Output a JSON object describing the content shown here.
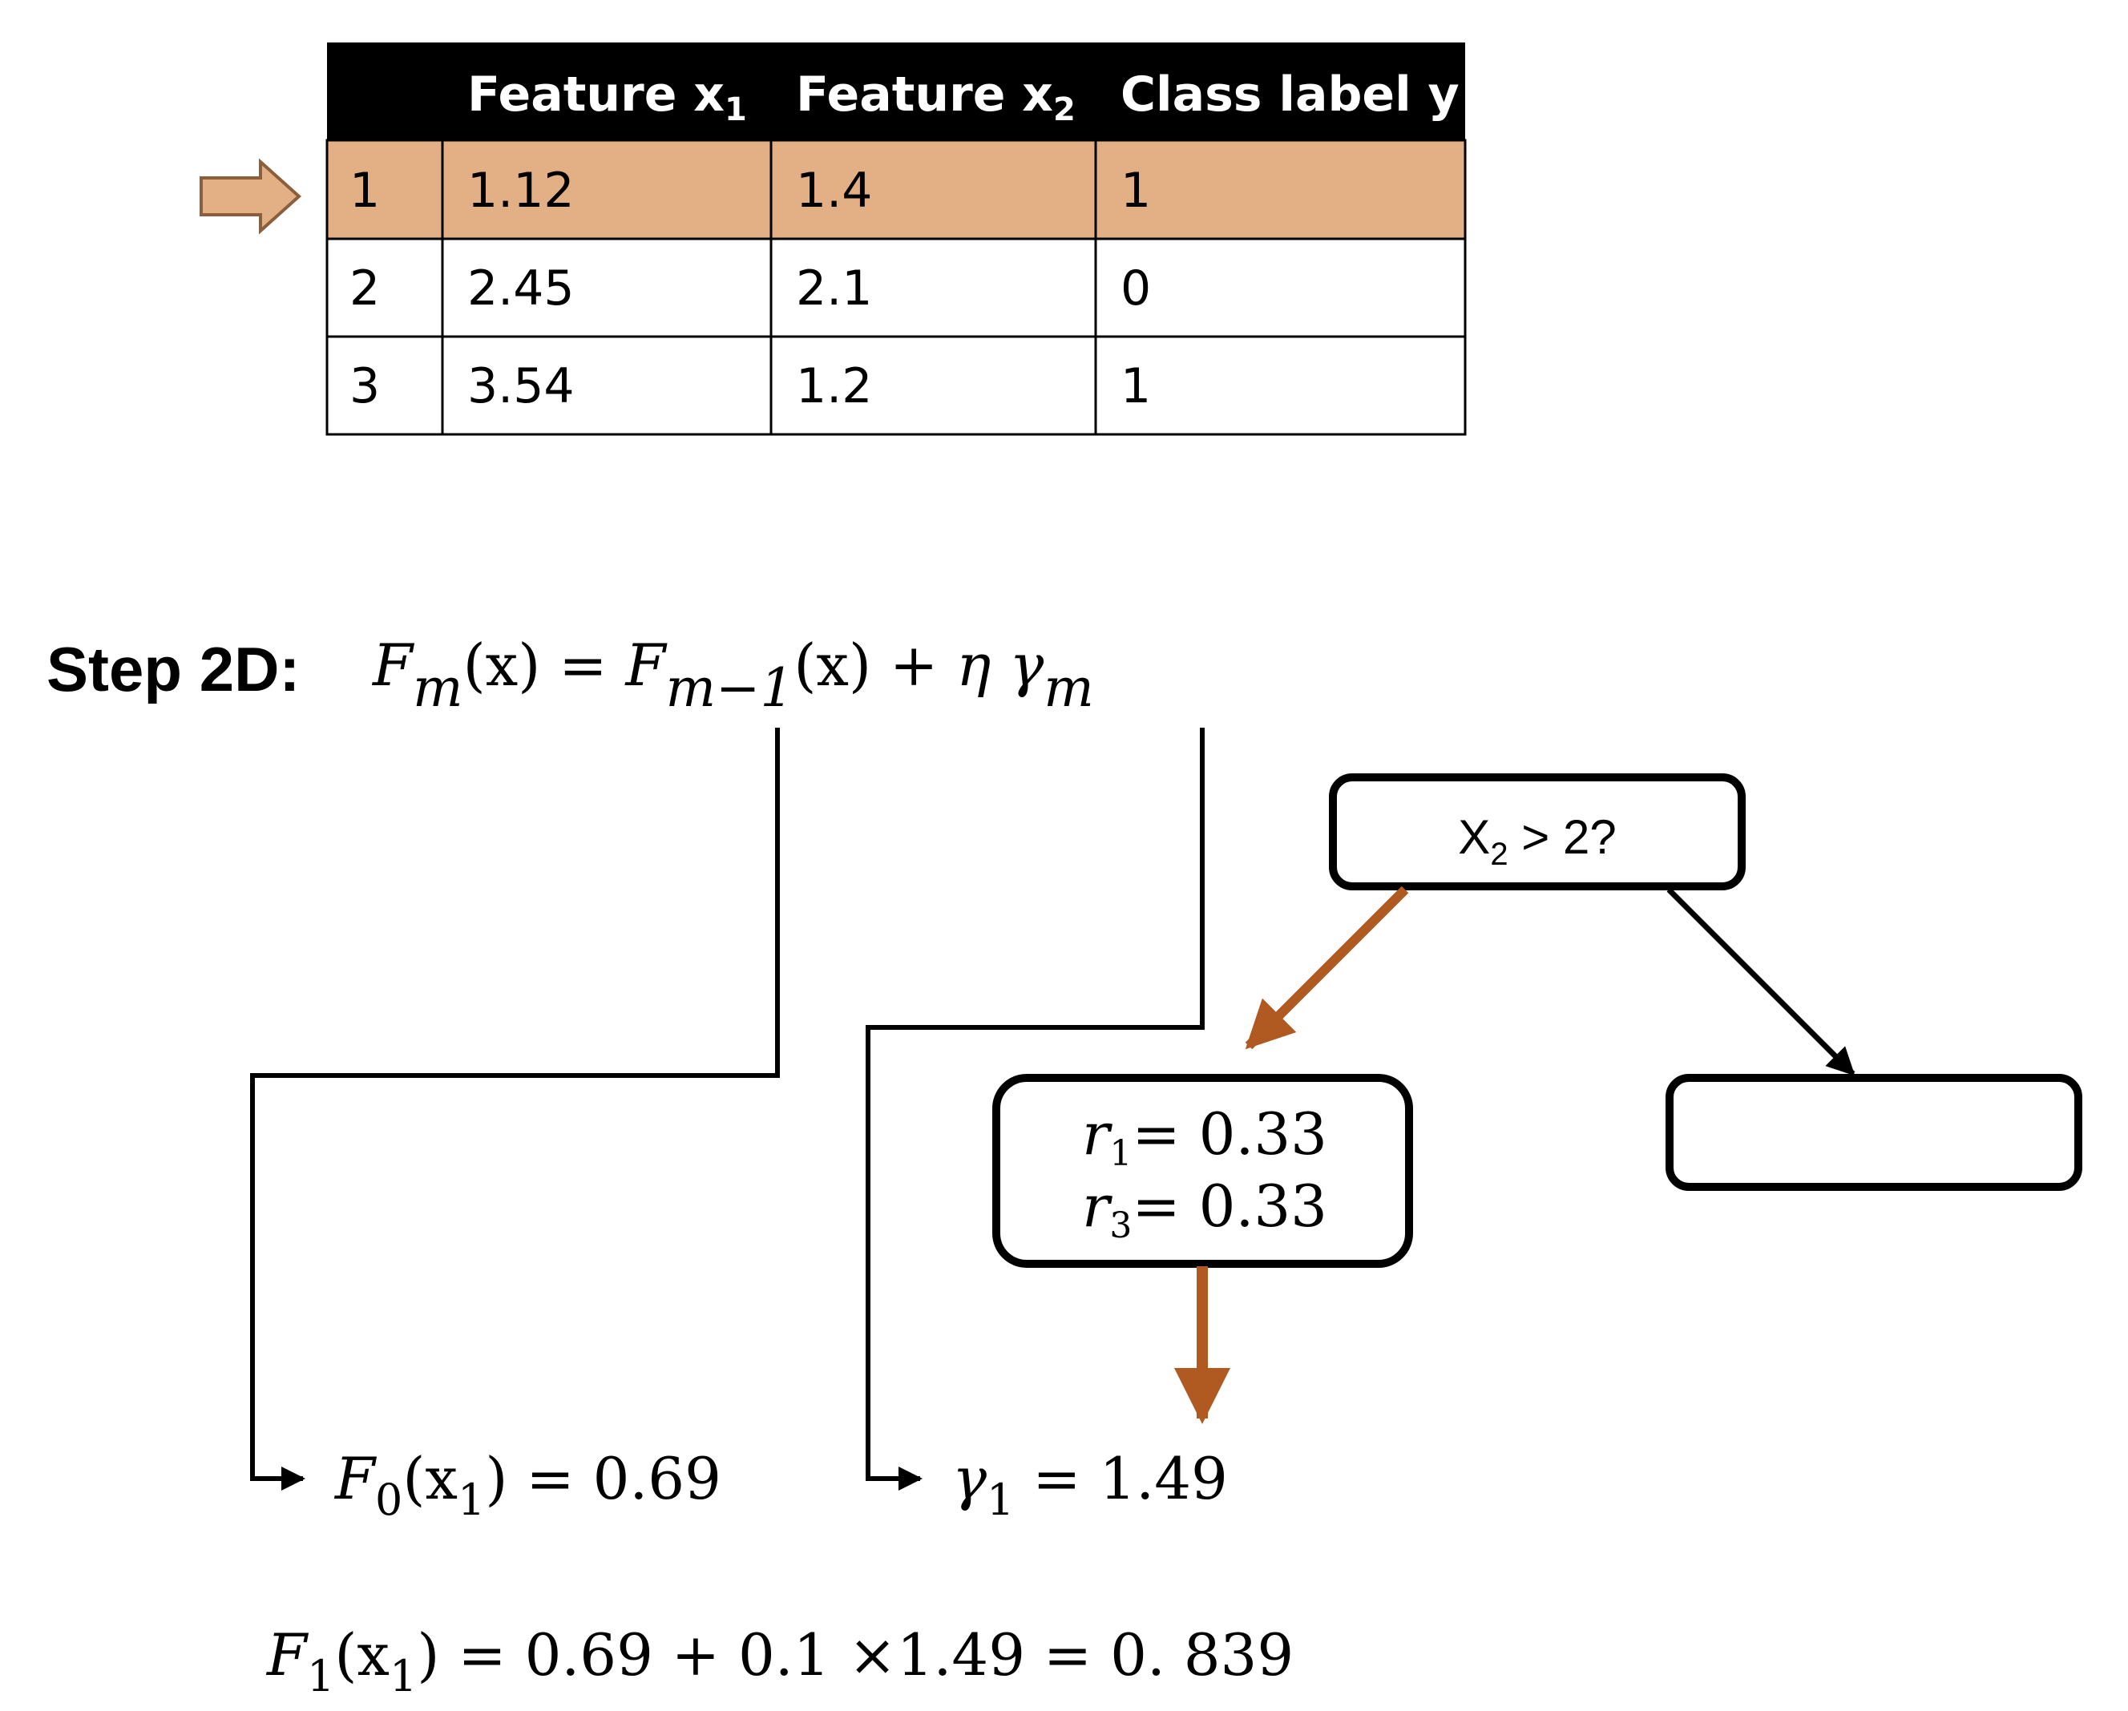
{
  "colors": {
    "highlight": "#E3AF85",
    "highlight_border": "#8B5E3C",
    "accent_arrow": "#B05A22",
    "header_bg": "#000000"
  },
  "table": {
    "headers": {
      "index": "",
      "x1_base": "Feature x",
      "x1_sub": "1",
      "x2_base": "Feature x",
      "x2_sub": "2",
      "y": "Class label y"
    },
    "rows": [
      {
        "idx": "1",
        "x1": "1.12",
        "x2": "1.4",
        "y": "1",
        "highlighted": true
      },
      {
        "idx": "2",
        "x1": "2.45",
        "x2": "2.1",
        "y": "0",
        "highlighted": false
      },
      {
        "idx": "3",
        "x1": "3.54",
        "x2": "1.2",
        "y": "1",
        "highlighted": false
      }
    ],
    "row_pointer_icon": "right-arrow-icon"
  },
  "step": {
    "label": "Step 2D:",
    "F": "F",
    "m": "m",
    "x_paren": "(x)",
    "equals": "=",
    "m_minus_1": "m−1",
    "plus_eta": "+ η",
    "gamma": "γ"
  },
  "tree": {
    "root_base": "X",
    "root_sub": "2",
    "root_tail": " > 2?",
    "leaf_left": [
      {
        "var": "r",
        "sub": "1",
        "value": "= 0.33"
      },
      {
        "var": "r",
        "sub": "3",
        "value": "= 0.33"
      }
    ],
    "leaf_right": ""
  },
  "results": {
    "f0": {
      "F": "F",
      "sub": "0",
      "arg_open": "(x",
      "arg_sub": "1",
      "arg_close": ")",
      "value": " = 0.69"
    },
    "gamma1": {
      "g": "γ",
      "sub": "1",
      "value": " = 1.49"
    },
    "final": {
      "F": "F",
      "sub": "1",
      "arg_open": "(x",
      "arg_sub": "1",
      "arg_close": ")",
      "value": " = 0.69 + 0.1 ×1.49 = 0. 839"
    }
  }
}
